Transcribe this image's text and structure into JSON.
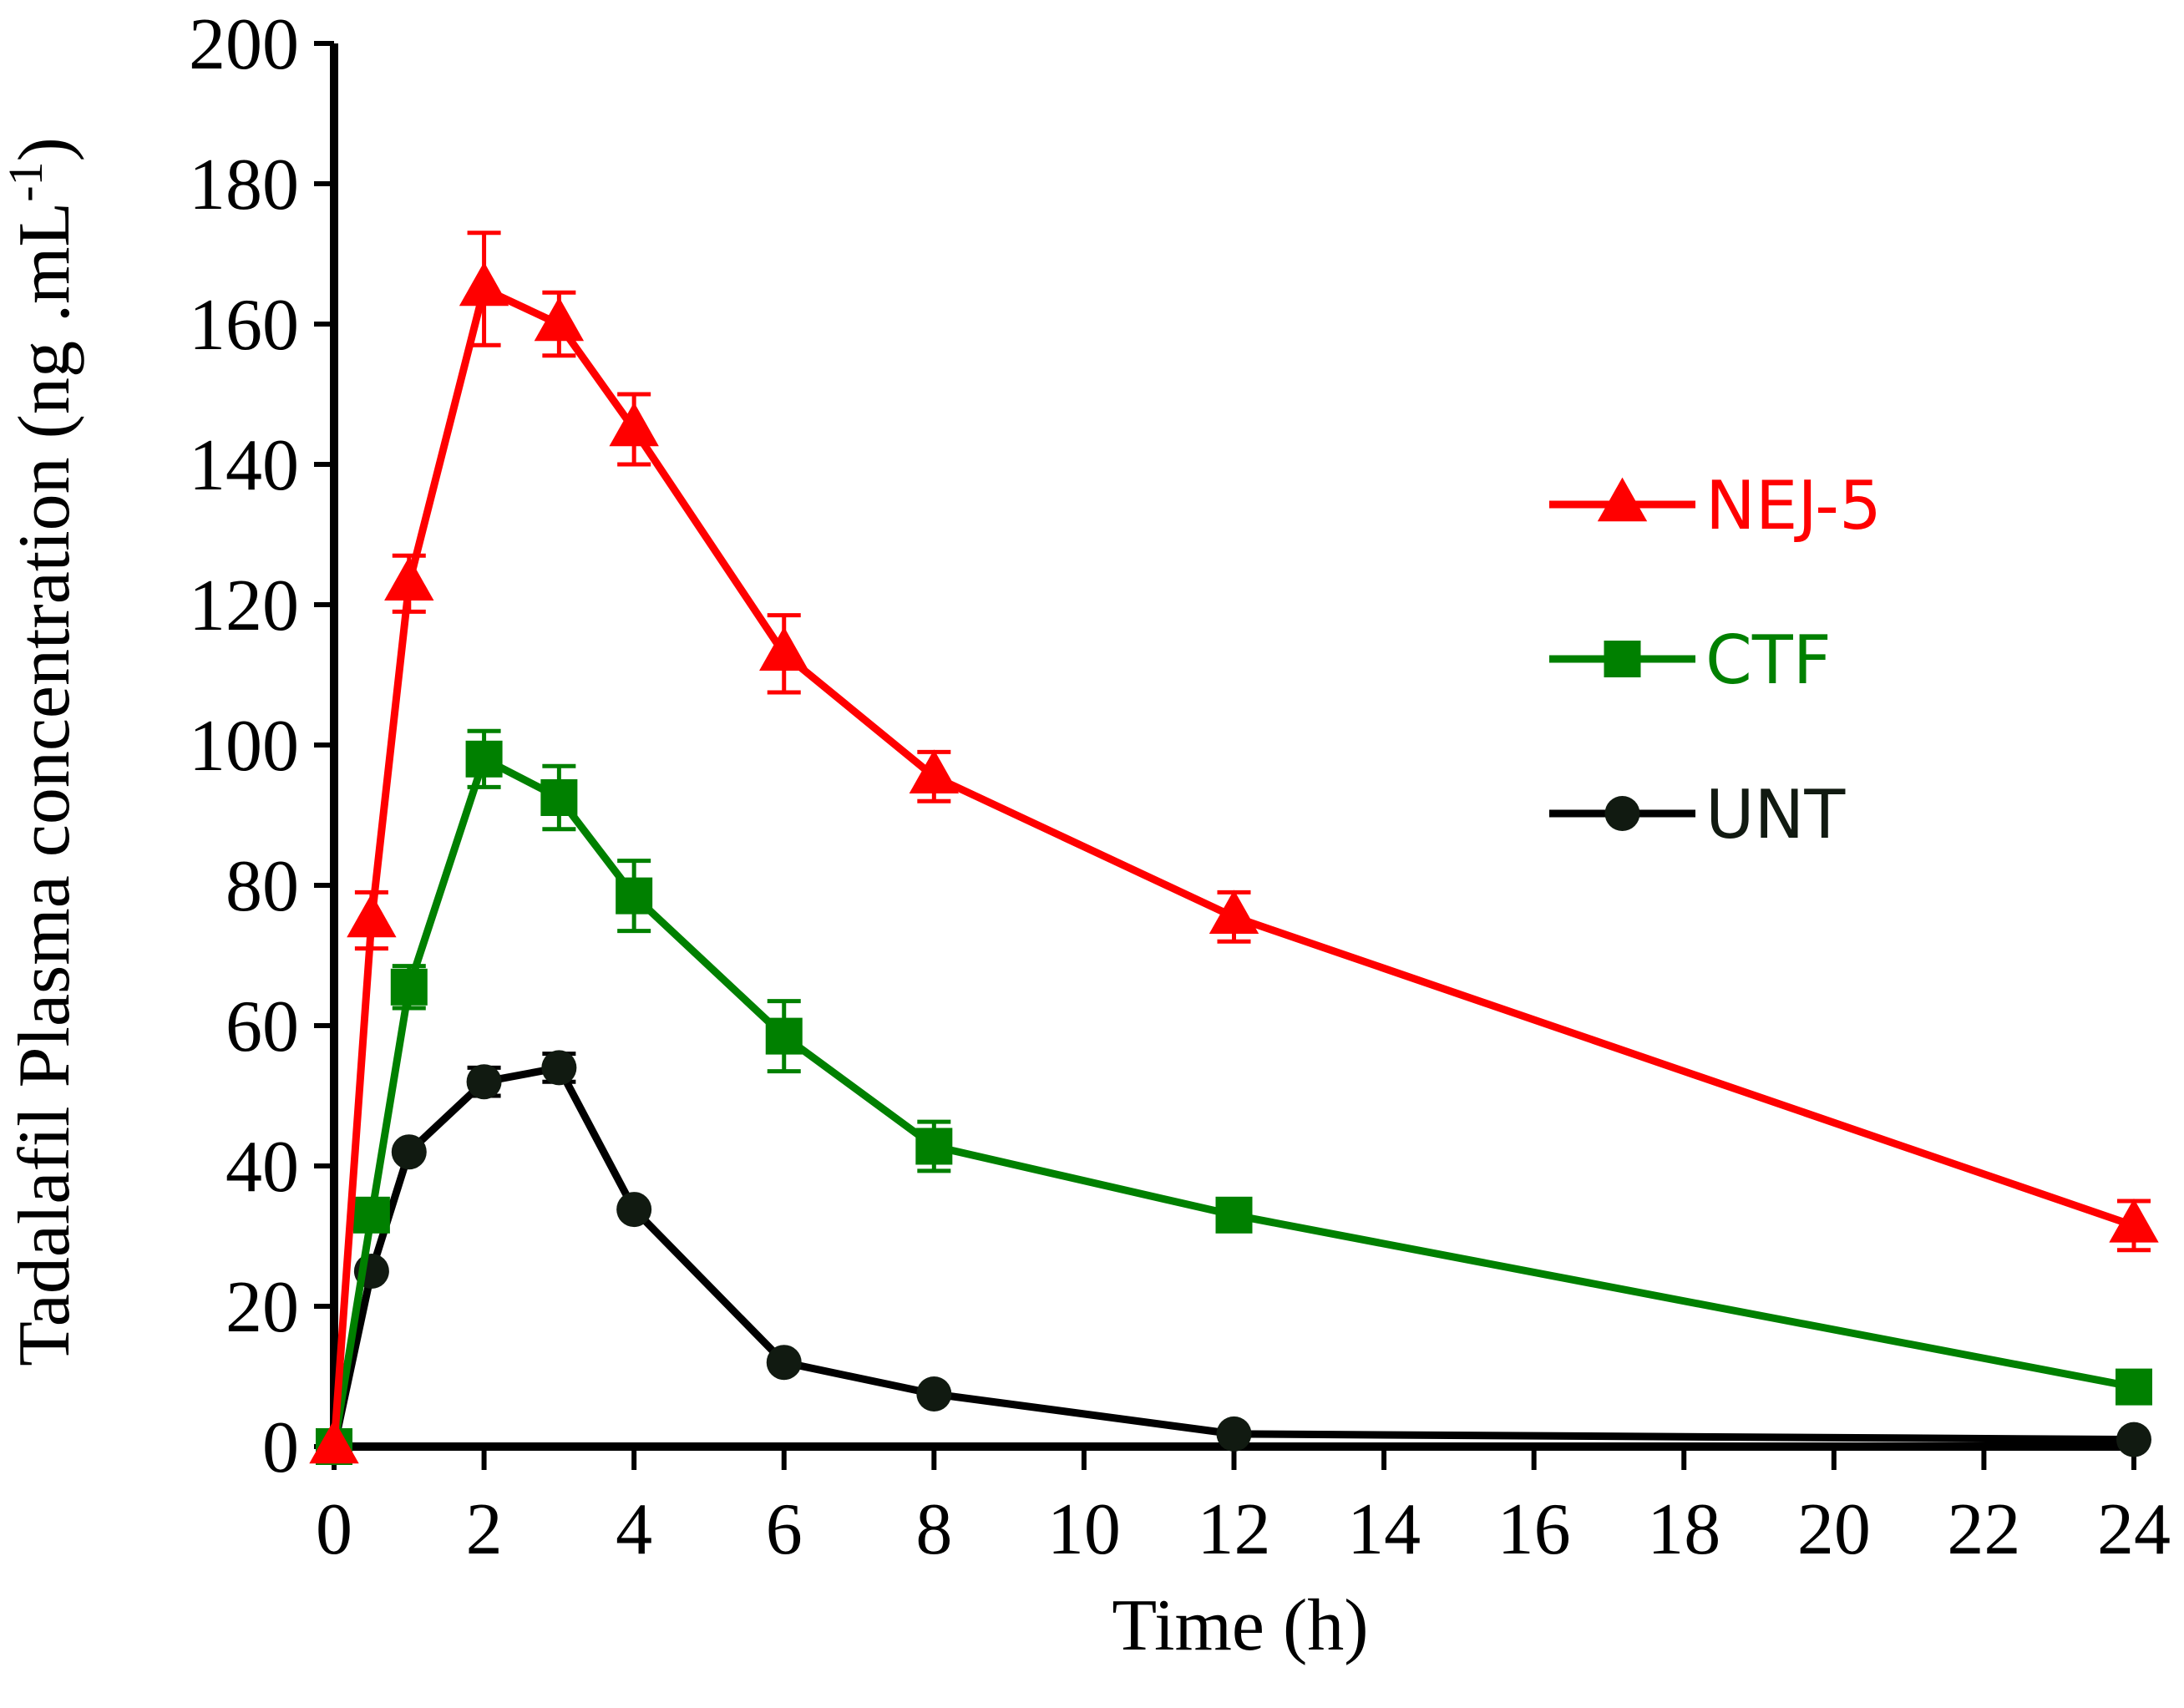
{
  "chart_data": {
    "type": "line",
    "title": "",
    "xlabel": "Time (h)",
    "ylabel": "Tadalafil Plasma concentration (ng .mL",
    "ylabel_superscript": "-1",
    "ylabel_close": ")",
    "xlim": [
      0,
      24
    ],
    "ylim": [
      0,
      200
    ],
    "xticks": [
      0,
      2,
      4,
      6,
      8,
      10,
      12,
      14,
      16,
      18,
      20,
      22,
      24
    ],
    "yticks": [
      0,
      20,
      40,
      60,
      80,
      100,
      120,
      140,
      160,
      180,
      200
    ],
    "grid": false,
    "legend_position": "right",
    "series": [
      {
        "name": "NEJ-5",
        "color": "#ff0000",
        "marker": "triangle",
        "x": [
          0,
          0.5,
          1,
          2,
          3,
          4,
          6,
          8,
          12,
          24
        ],
        "values": [
          0,
          75,
          123,
          165,
          160,
          145,
          113,
          95.5,
          75.5,
          31.5
        ],
        "errors": [
          0,
          4,
          4,
          8,
          4.5,
          5,
          5.5,
          3.5,
          3.5,
          3.5
        ]
      },
      {
        "name": "CTF",
        "color": "#008000",
        "marker": "square",
        "x": [
          0,
          0.5,
          1,
          2,
          3,
          4,
          6,
          8,
          12,
          24
        ],
        "values": [
          0,
          33,
          65.5,
          98,
          92.5,
          78.5,
          58.5,
          42.8,
          33,
          8.5
        ],
        "errors": [
          0,
          0,
          3,
          4,
          4.5,
          5,
          5,
          3.5,
          0,
          0
        ]
      },
      {
        "name": "UNT",
        "color": "#000000",
        "marker": "circle",
        "x": [
          0,
          0.5,
          1,
          2,
          3,
          4,
          6,
          8,
          12,
          24
        ],
        "values": [
          0,
          25,
          42,
          52,
          54,
          33.8,
          12,
          7.5,
          1.8,
          1
        ],
        "errors": [
          0,
          0,
          0,
          2,
          2,
          0,
          0,
          0,
          0,
          0
        ]
      }
    ]
  }
}
